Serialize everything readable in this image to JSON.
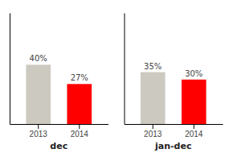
{
  "chart_data": [
    {
      "type": "bar",
      "xlabel": "dec",
      "categories": [
        "2013",
        "2014"
      ],
      "values": [
        40,
        27
      ],
      "value_labels": [
        "40%",
        "27%"
      ],
      "colors": [
        "#ccc9c0",
        "#ff0000"
      ],
      "ylim": [
        0,
        75
      ],
      "data_labels": true,
      "tick_labels": "x"
    },
    {
      "type": "bar",
      "xlabel": "jan-dec",
      "categories": [
        "2013",
        "2014"
      ],
      "values": [
        35,
        30
      ],
      "value_labels": [
        "35%",
        "30%"
      ],
      "colors": [
        "#ccc9c0",
        "#ff0000"
      ],
      "ylim": [
        0,
        75
      ],
      "data_labels": true,
      "tick_labels": "x"
    }
  ]
}
